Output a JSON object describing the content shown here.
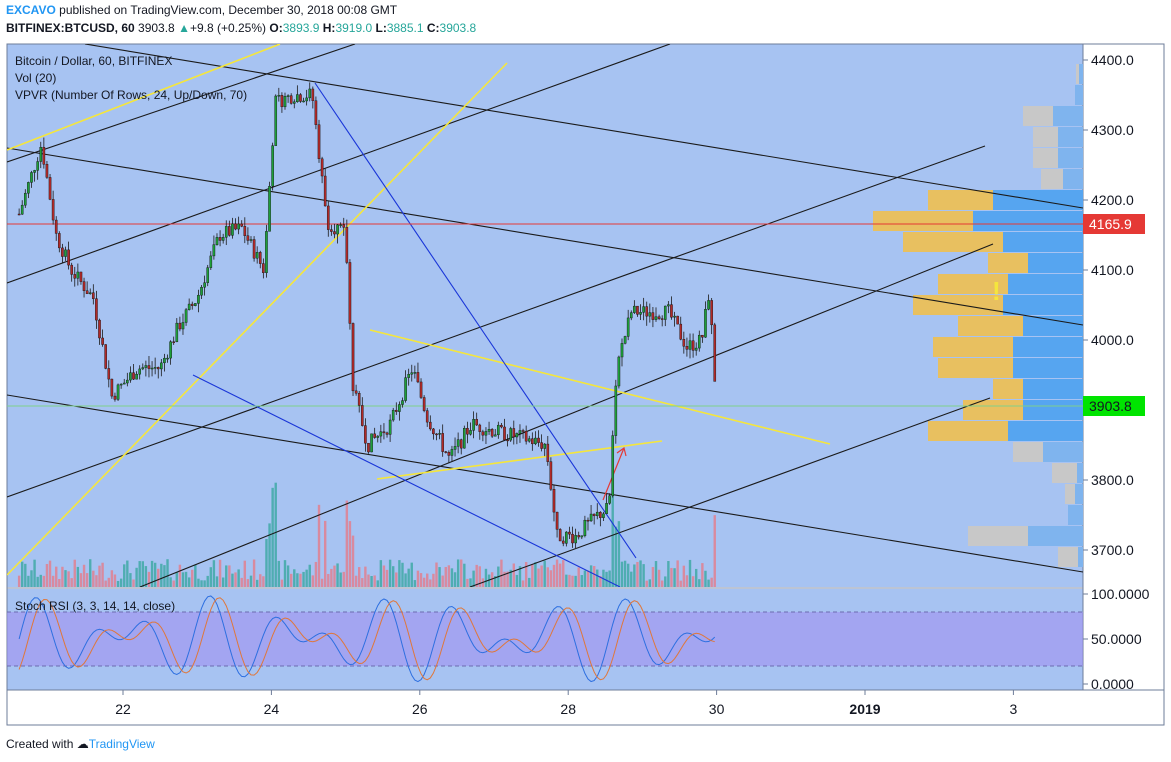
{
  "header": {
    "author": "EXCAVO",
    "published": "published on TradingView.com, December 30, 2018 00:08 GMT",
    "symbol": "BITFINEX:BTCUSD, 60",
    "last": "3903.8",
    "change_arrow": "▲",
    "change": "+9.8 (+0.25%)",
    "o_label": "O:",
    "o": "3893.9",
    "h_label": "H:",
    "h": "3919.0",
    "l_label": "L:",
    "l": "3885.1",
    "c_label": "C:",
    "c": "3903.8"
  },
  "legend": {
    "title": "Bitcoin / Dollar, 60, BITFINEX",
    "vol": "Vol (20)",
    "vpvr": "VPVR (Number Of Rows, 24, Up/Down, 70)",
    "stoch": "Stoch RSI (3, 3, 14, 14, close)"
  },
  "footer": {
    "prefix": "Created with",
    "brand": "TradingView"
  },
  "colors": {
    "pane_bg": "#a7c3f2",
    "up": "#1e9e3a",
    "down": "#b02a2a",
    "resistance": "#e53935",
    "current": "#00e400",
    "yellow_lines": "#f5e63c",
    "blue_lines": "#1a36d8",
    "vpvr_up": "#56a5f0",
    "vpvr_down": "#e8c060"
  },
  "chart_data": {
    "type": "candlestick",
    "price_axis": {
      "ticks": [
        "4400.0",
        "4300.0",
        "4200.0",
        "4100.0",
        "4000.0",
        "3900.0",
        "3800.0",
        "3700.0"
      ],
      "range": [
        3650,
        4430
      ]
    },
    "time_axis": {
      "labels": [
        "22",
        "24",
        "26",
        "28",
        "30",
        "2019",
        "3"
      ]
    },
    "price_labels": {
      "resistance": "4165.9",
      "last": "3903.8"
    },
    "resistance_level": 4165.9,
    "last_price": 3903.8,
    "ohlc_last": {
      "open": 3893.9,
      "high": 3919.0,
      "low": 3885.1,
      "close": 3903.8
    },
    "close_path": [
      {
        "day": 20.6,
        "close": 4180
      },
      {
        "day": 20.9,
        "close": 4280
      },
      {
        "day": 21.1,
        "close": 4150
      },
      {
        "day": 21.3,
        "close": 4100
      },
      {
        "day": 21.6,
        "close": 4060
      },
      {
        "day": 21.85,
        "close": 3920
      },
      {
        "day": 22.2,
        "close": 3960
      },
      {
        "day": 22.5,
        "close": 3960
      },
      {
        "day": 22.75,
        "close": 4020
      },
      {
        "day": 23.0,
        "close": 4060
      },
      {
        "day": 23.3,
        "close": 4150
      },
      {
        "day": 23.6,
        "close": 4160
      },
      {
        "day": 23.9,
        "close": 4100
      },
      {
        "day": 24.05,
        "close": 4340
      },
      {
        "day": 24.3,
        "close": 4350
      },
      {
        "day": 24.55,
        "close": 4350
      },
      {
        "day": 24.75,
        "close": 4170
      },
      {
        "day": 25.0,
        "close": 4150
      },
      {
        "day": 25.1,
        "close": 3930
      },
      {
        "day": 25.3,
        "close": 3850
      },
      {
        "day": 25.6,
        "close": 3880
      },
      {
        "day": 25.9,
        "close": 3960
      },
      {
        "day": 26.1,
        "close": 3890
      },
      {
        "day": 26.4,
        "close": 3830
      },
      {
        "day": 26.7,
        "close": 3880
      },
      {
        "day": 27.0,
        "close": 3870
      },
      {
        "day": 27.4,
        "close": 3860
      },
      {
        "day": 27.7,
        "close": 3850
      },
      {
        "day": 27.85,
        "close": 3720
      },
      {
        "day": 28.1,
        "close": 3720
      },
      {
        "day": 28.4,
        "close": 3750
      },
      {
        "day": 28.55,
        "close": 3760
      },
      {
        "day": 28.65,
        "close": 3960
      },
      {
        "day": 28.85,
        "close": 4040
      },
      {
        "day": 29.1,
        "close": 4040
      },
      {
        "day": 29.35,
        "close": 4040
      },
      {
        "day": 29.6,
        "close": 3990
      },
      {
        "day": 29.8,
        "close": 4000
      },
      {
        "day": 29.9,
        "close": 4070
      },
      {
        "day": 30.0,
        "close": 3903.8
      }
    ],
    "vpvr_rows": [
      {
        "price": 4380,
        "up": 4,
        "down": 3
      },
      {
        "price": 4350,
        "up": 8,
        "down": 0
      },
      {
        "price": 4320,
        "up": 30,
        "down": 30
      },
      {
        "price": 4290,
        "up": 25,
        "down": 25
      },
      {
        "price": 4260,
        "up": 25,
        "down": 25
      },
      {
        "price": 4230,
        "up": 20,
        "down": 22
      },
      {
        "price": 4200,
        "up": 90,
        "down": 65
      },
      {
        "price": 4170,
        "up": 110,
        "down": 100
      },
      {
        "price": 4140,
        "up": 80,
        "down": 100
      },
      {
        "price": 4110,
        "up": 55,
        "down": 40
      },
      {
        "price": 4080,
        "up": 75,
        "down": 70
      },
      {
        "price": 4050,
        "up": 80,
        "down": 90
      },
      {
        "price": 4020,
        "up": 60,
        "down": 65
      },
      {
        "price": 3990,
        "up": 70,
        "down": 80
      },
      {
        "price": 3960,
        "up": 70,
        "down": 75
      },
      {
        "price": 3930,
        "up": 60,
        "down": 30
      },
      {
        "price": 3900,
        "up": 60,
        "down": 60
      },
      {
        "price": 3870,
        "up": 75,
        "down": 80
      },
      {
        "price": 3840,
        "up": 40,
        "down": 30
      },
      {
        "price": 3810,
        "up": 6,
        "down": 25
      },
      {
        "price": 3780,
        "up": 8,
        "down": 10
      },
      {
        "price": 3750,
        "up": 15,
        "down": 0
      },
      {
        "price": 3720,
        "up": 55,
        "down": 60
      },
      {
        "price": 3690,
        "up": 5,
        "down": 20
      }
    ],
    "stoch_axis": {
      "ticks": [
        "100.0000",
        "50.0000",
        "0.0000"
      ],
      "band": [
        20,
        80
      ]
    }
  }
}
